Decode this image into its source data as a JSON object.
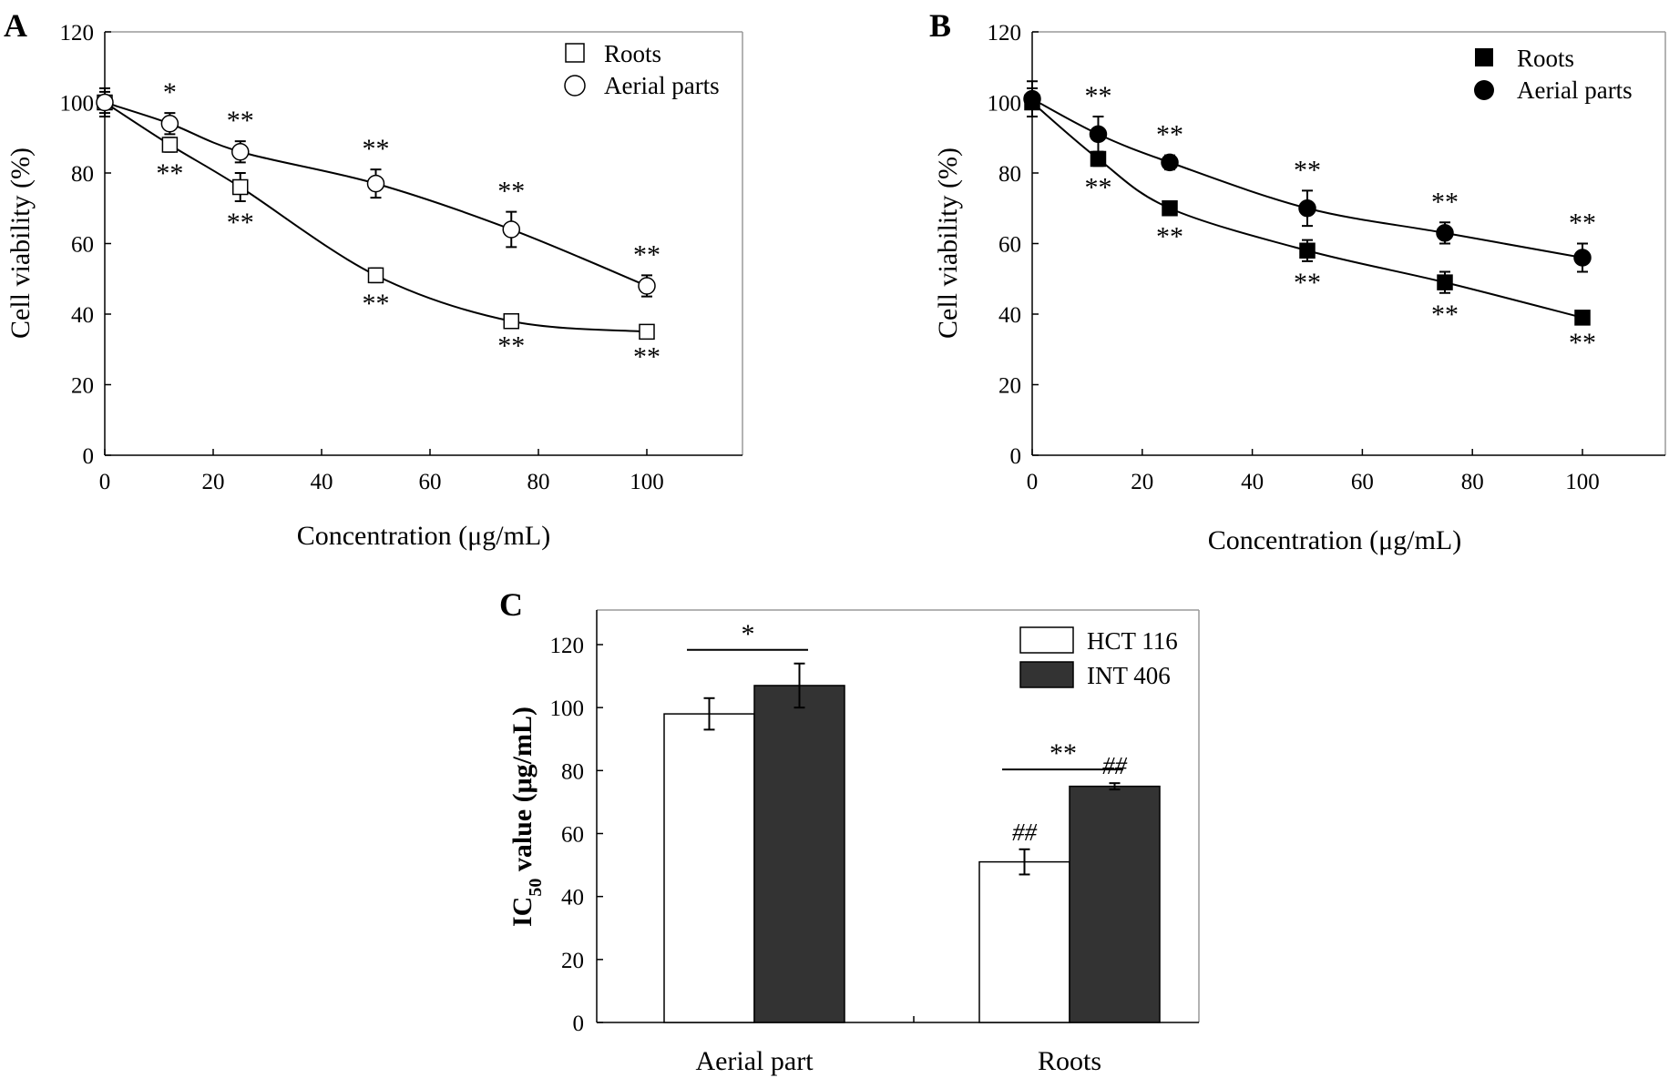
{
  "chart_data": [
    {
      "panel": "A",
      "type": "line",
      "xlabel": "Concentration (μg/mL)",
      "ylabel": "Cell viability (%)",
      "xlim": [
        0,
        115
      ],
      "ylim": [
        0,
        120
      ],
      "xticks": [
        "0",
        "20",
        "40",
        "60",
        "80",
        "100"
      ],
      "yticks": [
        "0",
        "20",
        "40",
        "60",
        "80",
        "100",
        "120"
      ],
      "marker_fill": "open",
      "legend_position": "top-right",
      "series": [
        {
          "name": "Roots",
          "marker": "square",
          "x": [
            0,
            12,
            25,
            50,
            75,
            100
          ],
          "y": [
            100,
            88,
            76,
            51,
            38,
            35
          ],
          "err": [
            3,
            2,
            4,
            2,
            1,
            1
          ],
          "sig": [
            "",
            "**",
            "**",
            "**",
            "**",
            "**"
          ],
          "sig_side": "below"
        },
        {
          "name": "Aerial parts",
          "marker": "circle",
          "x": [
            0,
            12,
            25,
            50,
            75,
            100
          ],
          "y": [
            100,
            94,
            86,
            77,
            64,
            48
          ],
          "err": [
            4,
            3,
            3,
            4,
            5,
            3
          ],
          "sig": [
            "",
            "*",
            "**",
            "**",
            "**",
            "**"
          ],
          "sig_side": "above"
        }
      ]
    },
    {
      "panel": "B",
      "type": "line",
      "xlabel": "Concentration (μg/mL)",
      "ylabel": "Cell viability (%)",
      "xlim": [
        0,
        115
      ],
      "ylim": [
        0,
        120
      ],
      "xticks": [
        "0",
        "20",
        "40",
        "60",
        "80",
        "100"
      ],
      "yticks": [
        "0",
        "20",
        "40",
        "60",
        "80",
        "100",
        "120"
      ],
      "marker_fill": "filled",
      "legend_position": "top-right",
      "series": [
        {
          "name": "Roots",
          "marker": "square",
          "x": [
            0,
            12,
            25,
            50,
            75,
            100
          ],
          "y": [
            100,
            84,
            70,
            58,
            49,
            39
          ],
          "err": [
            4,
            2,
            2,
            3,
            3,
            1
          ],
          "sig": [
            "",
            "**",
            "**",
            "**",
            "**",
            "**"
          ],
          "sig_side": "below"
        },
        {
          "name": "Aerial parts",
          "marker": "circle",
          "x": [
            0,
            12,
            25,
            50,
            75,
            100
          ],
          "y": [
            101,
            91,
            83,
            70,
            63,
            56
          ],
          "err": [
            5,
            5,
            2,
            5,
            3,
            4
          ],
          "sig": [
            "",
            "**",
            "**",
            "**",
            "**",
            "**"
          ],
          "sig_side": "above"
        }
      ]
    },
    {
      "panel": "C",
      "type": "bar",
      "ylabel_main": "IC",
      "ylabel_sub": "50",
      "ylabel_rest": " value (μg/mL)",
      "ylim": [
        0,
        130
      ],
      "yticks": [
        "0",
        "20",
        "40",
        "60",
        "80",
        "100",
        "120"
      ],
      "categories": [
        "Aerial part",
        "Roots"
      ],
      "series": [
        {
          "name": "HCT 116",
          "color": "#ffffff",
          "values": [
            98,
            51
          ],
          "err": [
            5,
            4
          ],
          "marks": [
            "",
            "##"
          ]
        },
        {
          "name": "INT 406",
          "color": "#333333",
          "values": [
            107,
            75
          ],
          "err": [
            7,
            1
          ],
          "marks": [
            "",
            "##"
          ]
        }
      ],
      "comparisons": [
        "*",
        "**"
      ],
      "legend_position": "top-right"
    }
  ]
}
